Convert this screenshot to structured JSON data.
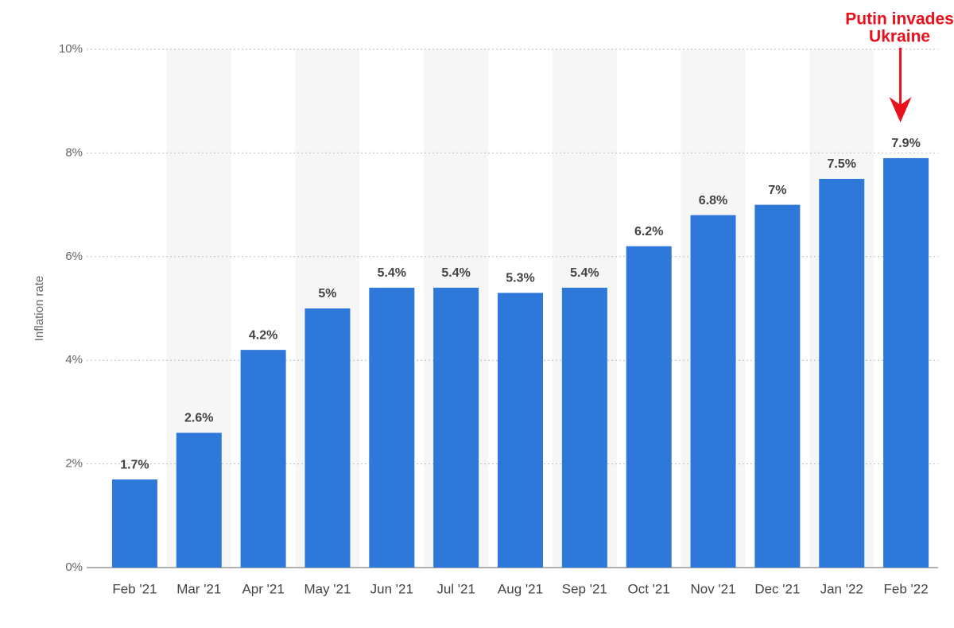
{
  "chart_data": {
    "type": "bar",
    "y_label": "Inflation rate",
    "categories": [
      "Feb '21",
      "Mar '21",
      "Apr '21",
      "May '21",
      "Jun '21",
      "Jul '21",
      "Aug '21",
      "Sep '21",
      "Oct '21",
      "Nov '21",
      "Dec '21",
      "Jan '22",
      "Feb '22"
    ],
    "values": [
      1.7,
      2.6,
      4.2,
      5,
      5.4,
      5.4,
      5.3,
      5.4,
      6.2,
      6.8,
      7,
      7.5,
      7.9
    ],
    "value_labels": [
      "1.7%",
      "2.6%",
      "4.2%",
      "5%",
      "5.4%",
      "5.4%",
      "5.3%",
      "5.4%",
      "6.2%",
      "6.8%",
      "7%",
      "7.5%",
      "7.9%"
    ],
    "color": "#2e78d9",
    "ylim": [
      0,
      10
    ],
    "yticks": [
      {
        "value": 0,
        "label": "0%"
      },
      {
        "value": 2,
        "label": "2%"
      },
      {
        "value": 4,
        "label": "4%"
      },
      {
        "value": 6,
        "label": "6%"
      },
      {
        "value": 8,
        "label": "8%"
      },
      {
        "value": 10,
        "label": "10%"
      }
    ],
    "grid": true,
    "annotation": [
      "Putin invades",
      "Ukraine"
    ]
  }
}
